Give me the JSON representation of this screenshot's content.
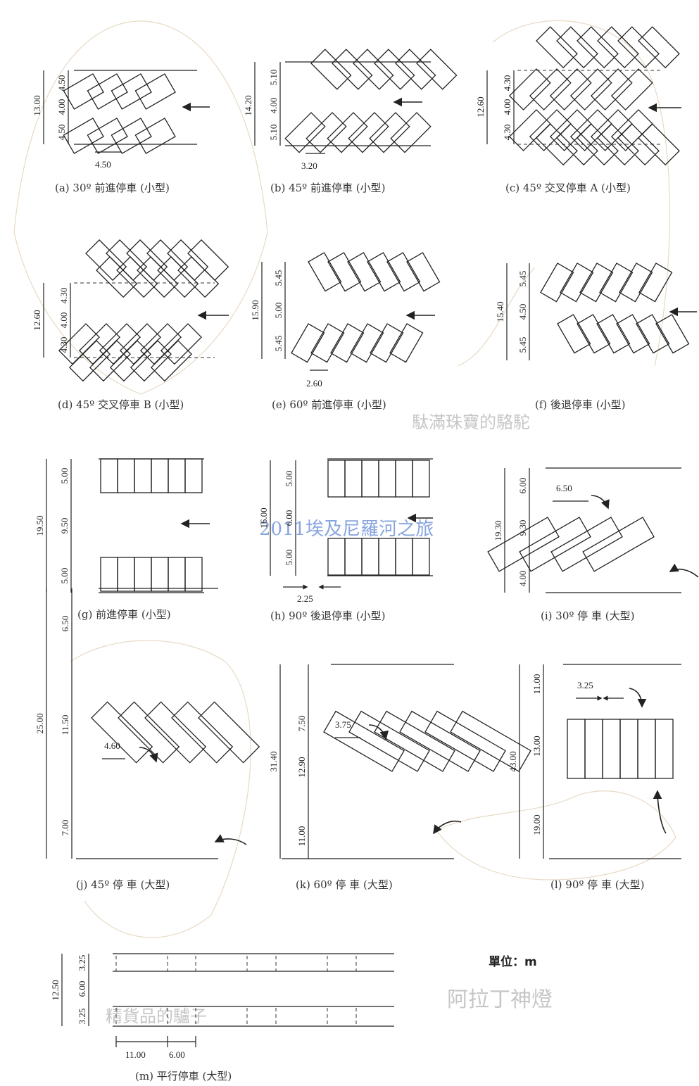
{
  "unit_label": "單位：m",
  "watermarks": [
    "駄滿珠寶的駱駝",
    "2011埃及尼羅河之旅",
    "阿拉丁神燈",
    "精貨品的驢子"
  ],
  "panels": [
    {
      "id": "a",
      "caption": "(a) 30º 前進停車 (小型)",
      "dims": [
        "13.00",
        "4.50",
        "4.00",
        "4.50",
        "4.50"
      ]
    },
    {
      "id": "b",
      "caption": "(b) 45º 前進停車 (小型)",
      "dims": [
        "14.20",
        "5.10",
        "4.00",
        "5.10",
        "3.20"
      ]
    },
    {
      "id": "c",
      "caption": "(c) 45º 交叉停車 A (小型)",
      "dims": [
        "12.60",
        "4.30",
        "4.00",
        "4.30"
      ]
    },
    {
      "id": "d",
      "caption": "(d) 45º 交叉停車 B (小型)",
      "dims": [
        "12.60",
        "4.30",
        "4.00",
        "4.30"
      ]
    },
    {
      "id": "e",
      "caption": "(e) 60º 前進停車 (小型)",
      "dims": [
        "15.90",
        "5.45",
        "5.00",
        "5.45",
        "2.60"
      ]
    },
    {
      "id": "f",
      "caption": "(f) 後退停車 (小型)",
      "dims": [
        "15.40",
        "5.45",
        "4.50",
        "5.45"
      ]
    },
    {
      "id": "g",
      "caption": "(g) 前進停車 (小型)",
      "dims": [
        "19.50",
        "5.00",
        "9.50",
        "5.00"
      ]
    },
    {
      "id": "h",
      "caption": "(h) 90º 後退停車 (小型)",
      "dims": [
        "16.00",
        "5.00",
        "6.00",
        "5.00",
        "2.25"
      ]
    },
    {
      "id": "i",
      "caption": "(i) 30º 停 車 (大型)",
      "dims": [
        "19.30",
        "6.00",
        "9.30",
        "4.00",
        "6.50"
      ]
    },
    {
      "id": "j",
      "caption": "(j) 45º 停 車 (大型)",
      "dims": [
        "25.00",
        "6.50",
        "11.50",
        "7.00",
        "4.60"
      ]
    },
    {
      "id": "k",
      "caption": "(k) 60º 停 車 (大型)",
      "dims": [
        "31.40",
        "7.50",
        "12.90",
        "11.00",
        "3.75"
      ]
    },
    {
      "id": "l",
      "caption": "(l) 90º 停 車 (大型)",
      "dims": [
        "43.00",
        "11.00",
        "13.00",
        "19.00",
        "3.25"
      ]
    },
    {
      "id": "m",
      "caption": "(m) 平行停車 (大型)",
      "dims": [
        "12.50",
        "3.25",
        "6.00",
        "3.25",
        "11.00",
        "6.00"
      ]
    }
  ]
}
